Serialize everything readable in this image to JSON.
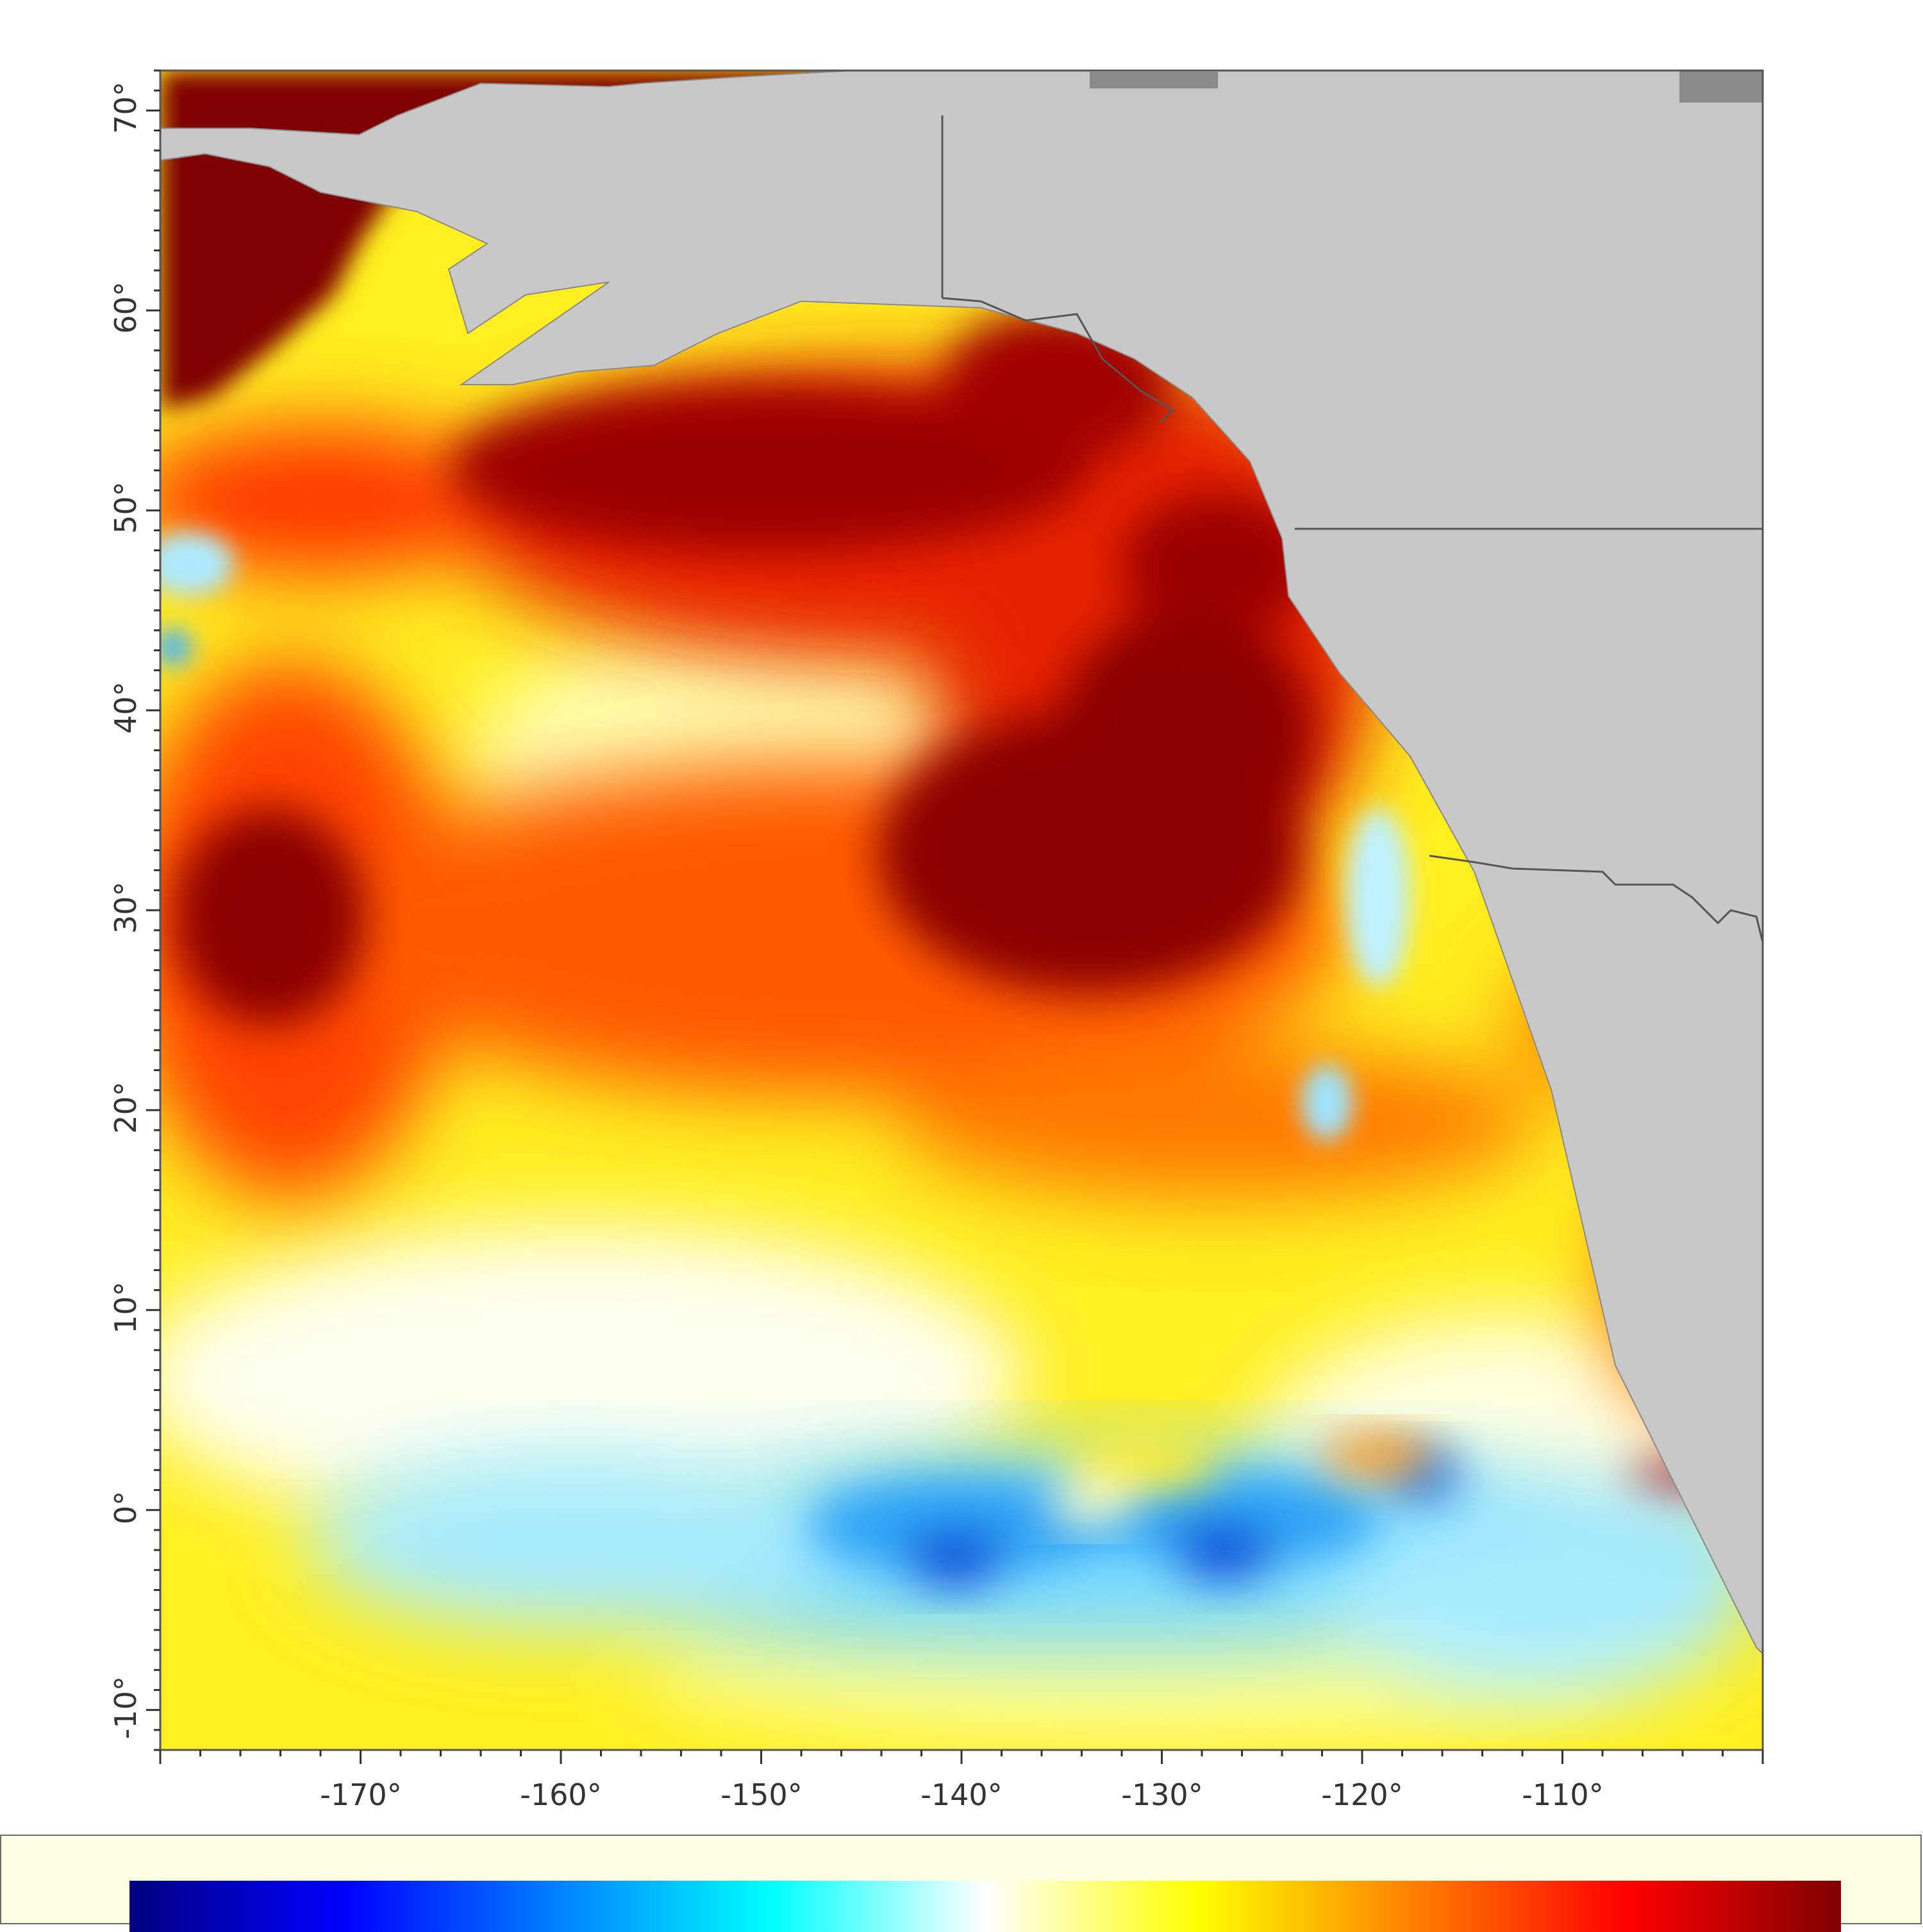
{
  "map": {
    "longitude_ticks": [
      "-170°",
      "-160°",
      "-150°",
      "-140°",
      "-130°",
      "-120°",
      "-110°"
    ],
    "latitude_ticks": [
      "70°",
      "60°",
      "50°",
      "40°",
      "30°",
      "20°",
      "10°",
      "0°",
      "-10°"
    ],
    "lon_range": [
      -180,
      -100
    ],
    "lat_range": [
      -12,
      72
    ],
    "land_color": "#c8c8c8",
    "border_color": "#555555"
  },
  "colorbar": {
    "colors": [
      "#00007f",
      "#0000ff",
      "#0080ff",
      "#00ffff",
      "#ffffff",
      "#ffff00",
      "#ff8000",
      "#ff0000",
      "#7f0000"
    ]
  }
}
